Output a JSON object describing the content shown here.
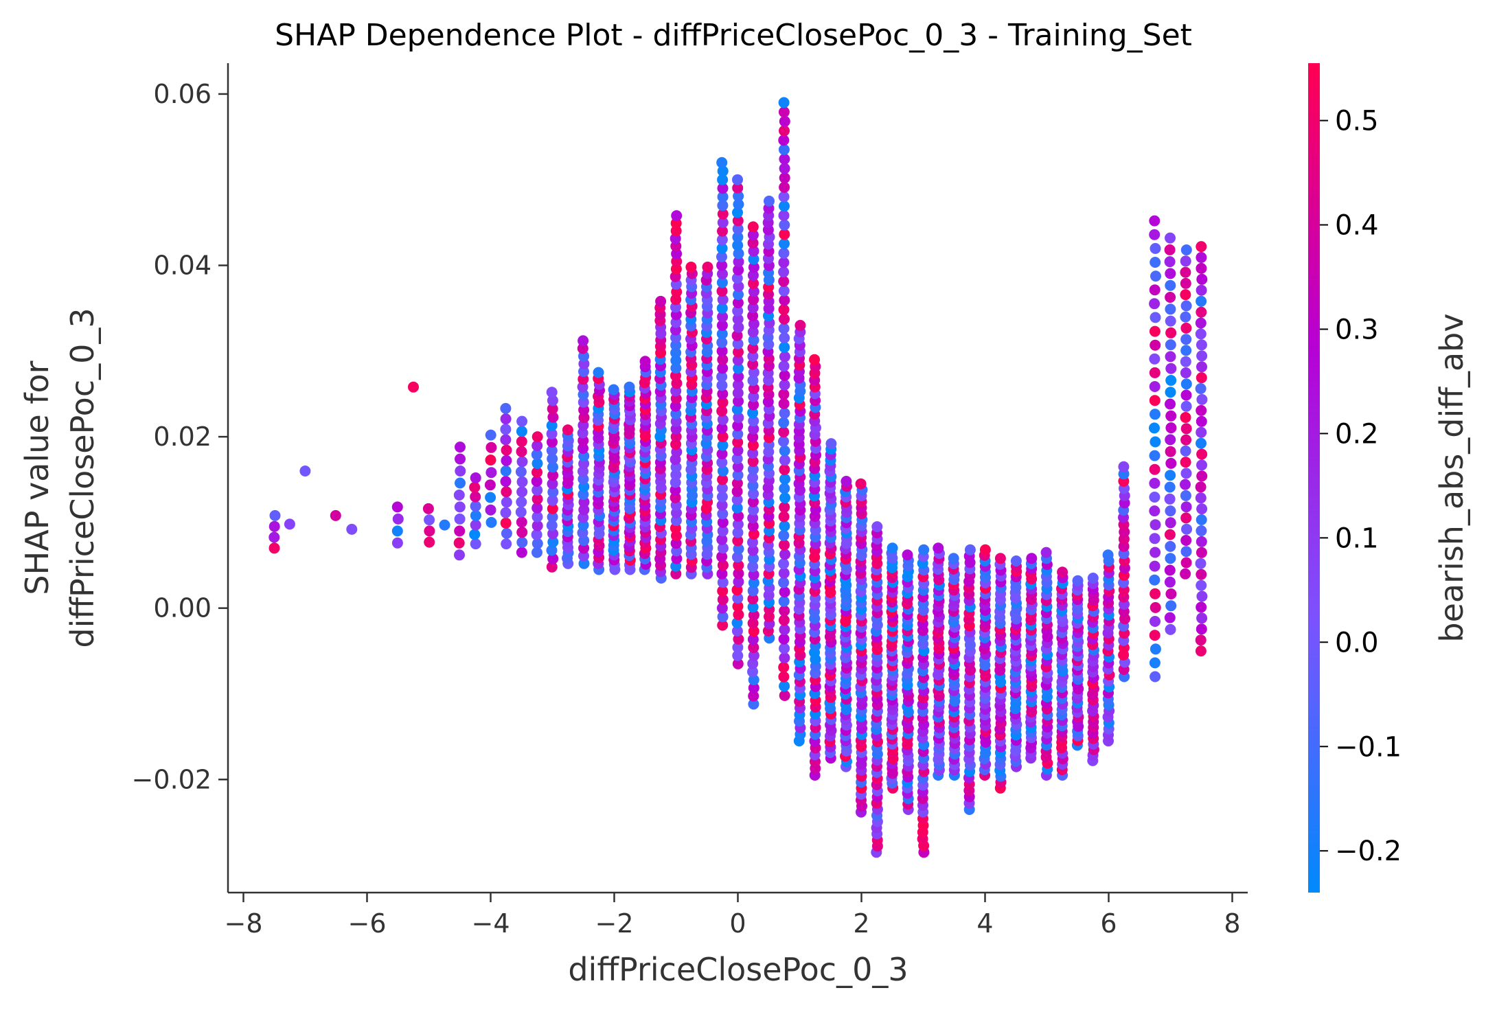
{
  "chart_data": {
    "type": "scatter",
    "title": "SHAP Dependence Plot - diffPriceClosePoc_0_3 - Training_Set",
    "xlabel": "diffPriceClosePoc_0_3",
    "ylabel_lines": [
      "SHAP value for",
      "diffPriceClosePoc_0_3"
    ],
    "xlim": [
      -8.25,
      8.25
    ],
    "ylim": [
      -0.0332,
      0.0636
    ],
    "x_ticks": [
      -8,
      -6,
      -4,
      -2,
      0,
      2,
      4,
      6,
      8
    ],
    "x_tick_labels": [
      "−8",
      "−6",
      "−4",
      "−2",
      "0",
      "2",
      "4",
      "6",
      "8"
    ],
    "y_ticks": [
      -0.02,
      0.0,
      0.02,
      0.04,
      0.06
    ],
    "y_tick_labels": [
      "−0.02",
      "0.00",
      "0.02",
      "0.04",
      "0.06"
    ],
    "grid": false,
    "colorbar": {
      "label": "bearish_abs_diff_abv",
      "range": [
        -0.24,
        0.555
      ],
      "ticks": [
        -0.2,
        -0.1,
        0.0,
        0.1,
        0.2,
        0.3,
        0.4,
        0.5
      ],
      "tick_labels": [
        "−0.2",
        "−0.1",
        "0.0",
        "0.1",
        "0.2",
        "0.3",
        "0.4",
        "0.5"
      ],
      "colormap": [
        "#008afb",
        "#7c52ff",
        "#b700d4",
        "#ff0052"
      ]
    },
    "columns": [
      {
        "x": -7.5,
        "lo": 0.007,
        "hi": 0.0108,
        "n": 4
      },
      {
        "x": -7.25,
        "lo": 0.0098,
        "hi": 0.0098,
        "n": 1
      },
      {
        "x": -7.0,
        "lo": 0.016,
        "hi": 0.016,
        "n": 1
      },
      {
        "x": -6.5,
        "lo": 0.0108,
        "hi": 0.0108,
        "n": 1
      },
      {
        "x": -6.25,
        "lo": 0.0092,
        "hi": 0.0092,
        "n": 1
      },
      {
        "x": -5.5,
        "lo": 0.0076,
        "hi": 0.0118,
        "n": 4
      },
      {
        "x": -5.25,
        "lo": 0.0258,
        "hi": 0.0258,
        "n": 1
      },
      {
        "x": -5.0,
        "lo": 0.0077,
        "hi": 0.0116,
        "n": 4
      },
      {
        "x": -4.75,
        "lo": 0.0097,
        "hi": 0.0097,
        "n": 1
      },
      {
        "x": -4.5,
        "lo": 0.0062,
        "hi": 0.0188,
        "n": 10
      },
      {
        "x": -4.25,
        "lo": 0.0075,
        "hi": 0.0152,
        "n": 8
      },
      {
        "x": -4.0,
        "lo": 0.01,
        "hi": 0.0202,
        "n": 8
      },
      {
        "x": -3.75,
        "lo": 0.0075,
        "hi": 0.0233,
        "n": 14
      },
      {
        "x": -3.5,
        "lo": 0.0065,
        "hi": 0.0218,
        "n": 14
      },
      {
        "x": -3.25,
        "lo": 0.0065,
        "hi": 0.02,
        "n": 14
      },
      {
        "x": -3.0,
        "lo": 0.0048,
        "hi": 0.0252,
        "n": 22
      },
      {
        "x": -2.75,
        "lo": 0.0052,
        "hi": 0.0208,
        "n": 26
      },
      {
        "x": -2.5,
        "lo": 0.0052,
        "hi": 0.0312,
        "n": 30
      },
      {
        "x": -2.25,
        "lo": 0.0045,
        "hi": 0.0275,
        "n": 34
      },
      {
        "x": -2.0,
        "lo": 0.0045,
        "hi": 0.0255,
        "n": 38
      },
      {
        "x": -1.75,
        "lo": 0.0045,
        "hi": 0.0258,
        "n": 40
      },
      {
        "x": -1.5,
        "lo": 0.0045,
        "hi": 0.0288,
        "n": 40
      },
      {
        "x": -1.25,
        "lo": 0.0035,
        "hi": 0.0358,
        "n": 44
      },
      {
        "x": -1.0,
        "lo": 0.004,
        "hi": 0.0458,
        "n": 48
      },
      {
        "x": -0.75,
        "lo": 0.004,
        "hi": 0.0398,
        "n": 48
      },
      {
        "x": -0.5,
        "lo": 0.004,
        "hi": 0.0398,
        "n": 48
      },
      {
        "x": -0.25,
        "lo": -0.002,
        "hi": 0.052,
        "n": 55
      },
      {
        "x": 0.0,
        "lo": -0.0065,
        "hi": 0.05,
        "n": 60
      },
      {
        "x": 0.25,
        "lo": -0.0112,
        "hi": 0.0445,
        "n": 60
      },
      {
        "x": 0.5,
        "lo": -0.0035,
        "hi": 0.0475,
        "n": 62
      },
      {
        "x": 0.75,
        "lo": -0.0102,
        "hi": 0.059,
        "n": 64
      },
      {
        "x": 1.0,
        "lo": -0.0155,
        "hi": 0.033,
        "n": 64
      },
      {
        "x": 1.25,
        "lo": -0.0195,
        "hi": 0.029,
        "n": 62
      },
      {
        "x": 1.5,
        "lo": -0.0175,
        "hi": 0.0192,
        "n": 58
      },
      {
        "x": 1.75,
        "lo": -0.0185,
        "hi": 0.0148,
        "n": 56
      },
      {
        "x": 2.0,
        "lo": -0.0238,
        "hi": 0.0145,
        "n": 56
      },
      {
        "x": 2.25,
        "lo": -0.0285,
        "hi": 0.0095,
        "n": 54
      },
      {
        "x": 2.5,
        "lo": -0.021,
        "hi": 0.007,
        "n": 50
      },
      {
        "x": 2.75,
        "lo": -0.0235,
        "hi": 0.0062,
        "n": 48
      },
      {
        "x": 3.0,
        "lo": -0.0285,
        "hi": 0.0068,
        "n": 46
      },
      {
        "x": 3.25,
        "lo": -0.0195,
        "hi": 0.007,
        "n": 44
      },
      {
        "x": 3.5,
        "lo": -0.0195,
        "hi": 0.0058,
        "n": 42
      },
      {
        "x": 3.75,
        "lo": -0.0235,
        "hi": 0.0068,
        "n": 42
      },
      {
        "x": 4.0,
        "lo": -0.0195,
        "hi": 0.0068,
        "n": 42
      },
      {
        "x": 4.25,
        "lo": -0.021,
        "hi": 0.0058,
        "n": 40
      },
      {
        "x": 4.5,
        "lo": -0.0185,
        "hi": 0.0055,
        "n": 40
      },
      {
        "x": 4.75,
        "lo": -0.0175,
        "hi": 0.0058,
        "n": 40
      },
      {
        "x": 5.0,
        "lo": -0.0195,
        "hi": 0.0065,
        "n": 38
      },
      {
        "x": 5.25,
        "lo": -0.0195,
        "hi": 0.0042,
        "n": 38
      },
      {
        "x": 5.5,
        "lo": -0.016,
        "hi": 0.0032,
        "n": 36
      },
      {
        "x": 5.75,
        "lo": -0.0178,
        "hi": 0.0035,
        "n": 34
      },
      {
        "x": 6.0,
        "lo": -0.0155,
        "hi": 0.0062,
        "n": 32
      },
      {
        "x": 6.25,
        "lo": -0.008,
        "hi": 0.0165,
        "n": 30
      },
      {
        "x": 6.75,
        "lo": -0.008,
        "hi": 0.0452,
        "n": 34
      },
      {
        "x": 7.0,
        "lo": -0.0025,
        "hi": 0.0432,
        "n": 34
      },
      {
        "x": 7.25,
        "lo": 0.004,
        "hi": 0.0418,
        "n": 30
      },
      {
        "x": 7.5,
        "lo": -0.005,
        "hi": 0.0422,
        "n": 38
      }
    ]
  }
}
